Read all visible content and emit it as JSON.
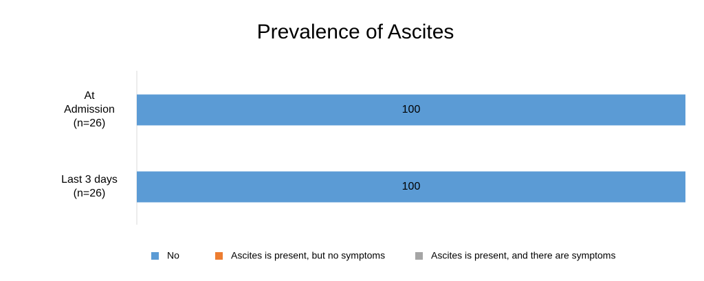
{
  "chart_data": {
    "type": "bar",
    "orientation": "horizontal",
    "stacked": true,
    "title": "Prevalence of Ascites",
    "categories": [
      "At\nAdmission\n(n=26)",
      "Last 3 days\n(n=26)"
    ],
    "series": [
      {
        "name": "No",
        "color": "#5b9bd5",
        "values": [
          100,
          100
        ]
      },
      {
        "name": "Ascites is present, but no symptoms",
        "color": "#ed7d31",
        "values": [
          0,
          0
        ]
      },
      {
        "name": "Ascites is present, and there are symptoms",
        "color": "#a5a5a5",
        "values": [
          0,
          0
        ]
      }
    ],
    "xlim": [
      0,
      100
    ]
  }
}
